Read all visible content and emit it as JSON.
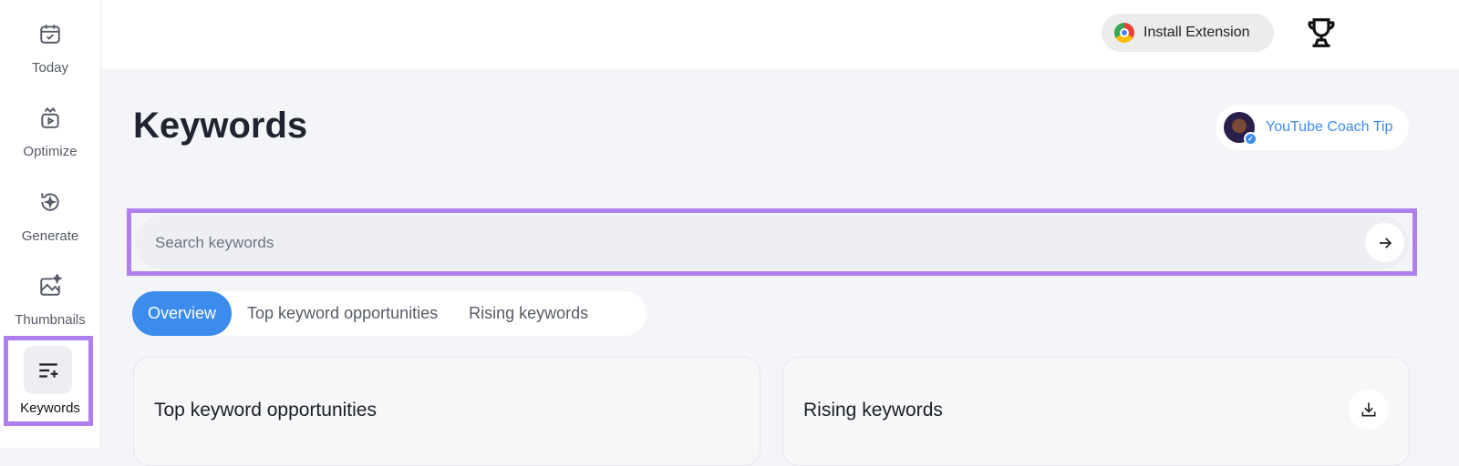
{
  "sidebar": {
    "items": [
      {
        "label": "Today",
        "icon": "calendar-check-icon"
      },
      {
        "label": "Optimize",
        "icon": "video-play-icon"
      },
      {
        "label": "Generate",
        "icon": "refresh-sparkle-icon"
      },
      {
        "label": "Thumbnails",
        "icon": "image-sparkle-icon"
      },
      {
        "label": "Keywords",
        "icon": "list-plus-icon",
        "active": true
      }
    ]
  },
  "header": {
    "install_label": "Install Extension",
    "trophy_icon": "trophy-icon"
  },
  "page": {
    "title": "Keywords",
    "coach_tip": "YouTube Coach Tip"
  },
  "search": {
    "placeholder": "Search keywords",
    "value": ""
  },
  "tabs": [
    {
      "label": "Overview",
      "active": true
    },
    {
      "label": "Top keyword opportunities"
    },
    {
      "label": "Rising keywords"
    }
  ],
  "cards": [
    {
      "title": "Top keyword opportunities"
    },
    {
      "title": "Rising keywords",
      "icon": "download-icon"
    }
  ],
  "colors": {
    "accent": "#3b8ced",
    "highlight": "#b07fef"
  }
}
